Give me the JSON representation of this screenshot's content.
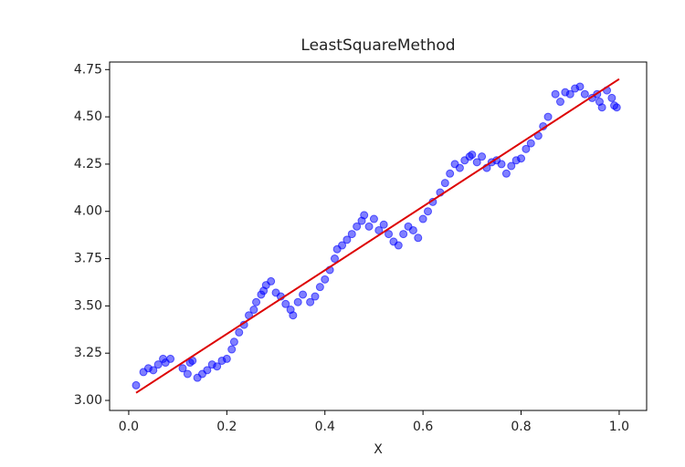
{
  "chart_data": {
    "type": "scatter",
    "title": "LeastSquareMethod",
    "x_label": "X",
    "xlim": [
      -0.039,
      1.056
    ],
    "ylim": [
      2.947,
      4.79
    ],
    "xticks": [
      {
        "value": 0,
        "label": "0.0"
      },
      {
        "value": 0.2,
        "label": "0.2"
      },
      {
        "value": 0.4,
        "label": "0.4"
      },
      {
        "value": 0.6,
        "label": "0.6"
      },
      {
        "value": 0.8,
        "label": "0.8"
      },
      {
        "value": 1,
        "label": "1.0"
      }
    ],
    "yticks": [
      {
        "value": 3,
        "label": "3.00"
      },
      {
        "value": 3.25,
        "label": "3.25"
      },
      {
        "value": 3.5,
        "label": "3.50"
      },
      {
        "value": 3.75,
        "label": "3.75"
      },
      {
        "value": 4,
        "label": "4.00"
      },
      {
        "value": 4.25,
        "label": "4.25"
      },
      {
        "value": 4.5,
        "label": "4.50"
      },
      {
        "value": 4.75,
        "label": "4.75"
      }
    ],
    "series": [
      {
        "type": "scatter",
        "color": "#0000ff",
        "x": [
          0.015,
          0.03,
          0.04,
          0.05,
          0.06,
          0.07,
          0.075,
          0.085,
          0.11,
          0.12,
          0.125,
          0.13,
          0.14,
          0.15,
          0.16,
          0.17,
          0.18,
          0.19,
          0.2,
          0.21,
          0.215,
          0.225,
          0.235,
          0.245,
          0.255,
          0.26,
          0.27,
          0.275,
          0.28,
          0.29,
          0.3,
          0.31,
          0.32,
          0.33,
          0.335,
          0.345,
          0.355,
          0.37,
          0.38,
          0.39,
          0.4,
          0.41,
          0.42,
          0.425,
          0.435,
          0.445,
          0.455,
          0.465,
          0.475,
          0.48,
          0.49,
          0.5,
          0.51,
          0.52,
          0.53,
          0.54,
          0.55,
          0.56,
          0.57,
          0.58,
          0.59,
          0.6,
          0.61,
          0.62,
          0.635,
          0.645,
          0.655,
          0.665,
          0.675,
          0.685,
          0.695,
          0.7,
          0.71,
          0.72,
          0.73,
          0.74,
          0.75,
          0.76,
          0.77,
          0.78,
          0.79,
          0.8,
          0.81,
          0.82,
          0.835,
          0.845,
          0.855,
          0.87,
          0.88,
          0.89,
          0.9,
          0.91,
          0.92,
          0.93,
          0.945,
          0.955,
          0.96,
          0.965,
          0.975,
          0.985,
          0.99,
          0.995
        ],
        "values": [
          3.08,
          3.15,
          3.17,
          3.16,
          3.19,
          3.22,
          3.2,
          3.22,
          3.17,
          3.14,
          3.2,
          3.21,
          3.12,
          3.14,
          3.16,
          3.19,
          3.18,
          3.21,
          3.22,
          3.27,
          3.31,
          3.36,
          3.4,
          3.45,
          3.48,
          3.52,
          3.56,
          3.58,
          3.61,
          3.63,
          3.57,
          3.55,
          3.51,
          3.48,
          3.45,
          3.52,
          3.56,
          3.52,
          3.55,
          3.6,
          3.64,
          3.69,
          3.75,
          3.8,
          3.82,
          3.85,
          3.88,
          3.92,
          3.95,
          3.98,
          3.92,
          3.96,
          3.9,
          3.93,
          3.88,
          3.84,
          3.82,
          3.88,
          3.92,
          3.9,
          3.86,
          3.96,
          4.0,
          4.05,
          4.1,
          4.15,
          4.2,
          4.25,
          4.23,
          4.27,
          4.29,
          4.3,
          4.26,
          4.29,
          4.23,
          4.26,
          4.27,
          4.25,
          4.2,
          4.24,
          4.27,
          4.28,
          4.33,
          4.36,
          4.4,
          4.45,
          4.5,
          4.62,
          4.58,
          4.63,
          4.62,
          4.65,
          4.66,
          4.62,
          4.6,
          4.62,
          4.58,
          4.55,
          4.64,
          4.6,
          4.56,
          4.55
        ]
      },
      {
        "type": "line",
        "color": "#dd0000",
        "x": [
          0.015,
          1.0
        ],
        "values": [
          3.04,
          4.7
        ]
      }
    ]
  }
}
